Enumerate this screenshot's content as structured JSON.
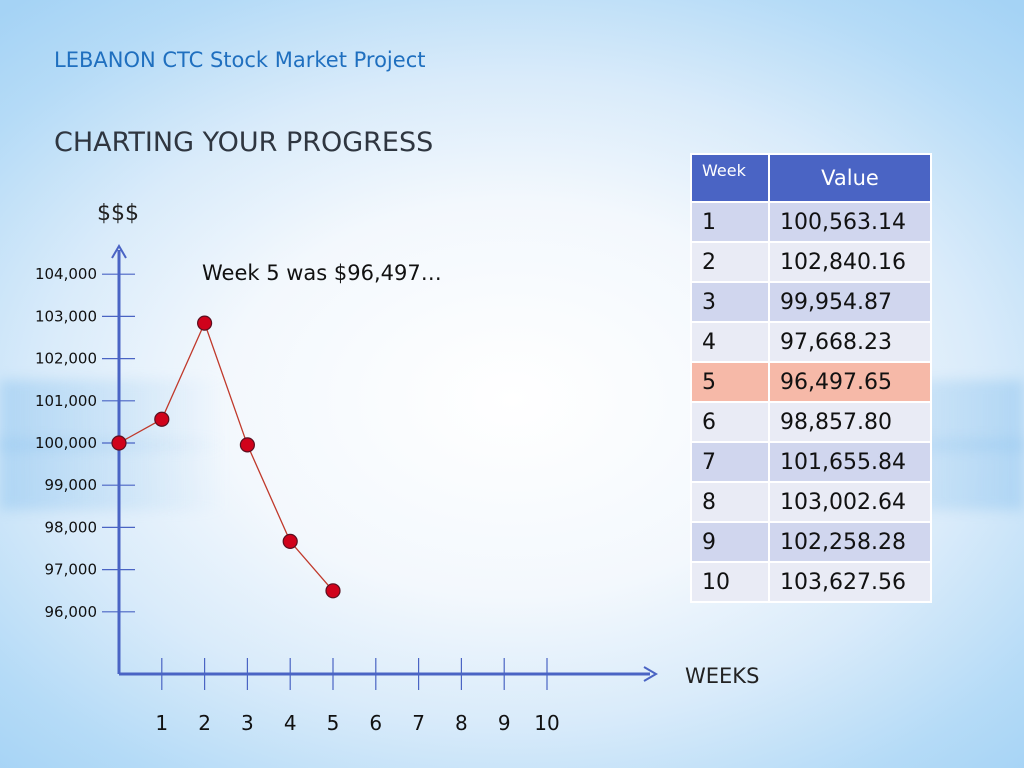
{
  "header": "LEBANON CTC Stock Market Project",
  "title": "CHARTING YOUR PROGRESS",
  "table": {
    "headers": [
      "Week",
      "Value"
    ],
    "rows": [
      [
        "1",
        "100,563.14"
      ],
      [
        "2",
        "102,840.16"
      ],
      [
        "3",
        "99,954.87"
      ],
      [
        "4",
        "97,668.23"
      ],
      [
        "5",
        "96,497.65"
      ],
      [
        "6",
        "98,857.80"
      ],
      [
        "7",
        "101,655.84"
      ],
      [
        "8",
        "103,002.64"
      ],
      [
        "9",
        "102,258.28"
      ],
      [
        "10",
        "103,627.56"
      ]
    ],
    "highlight_row": 5
  },
  "chart_data": {
    "type": "line",
    "ylabel": "$$$",
    "xlabel": "WEEKS",
    "annotation": "Week 5 was $96,497…",
    "x": [
      0,
      1,
      2,
      3,
      4,
      5
    ],
    "y": [
      100000,
      100563.14,
      102840.16,
      99954.87,
      97668.23,
      96497.65
    ],
    "x_ticks": [
      "1",
      "2",
      "3",
      "4",
      "5",
      "6",
      "7",
      "8",
      "9",
      "10"
    ],
    "y_ticks": [
      "104,000",
      "103,000",
      "102,000",
      "101,000",
      "100,000",
      "99,000",
      "98,000",
      "97,000",
      "96,000"
    ],
    "y_tick_values": [
      104000,
      103000,
      102000,
      101000,
      100000,
      99000,
      98000,
      97000,
      96000
    ],
    "line_color": "#c0392b",
    "marker_color": "#d0021b",
    "axis_color": "#4a64c4"
  }
}
